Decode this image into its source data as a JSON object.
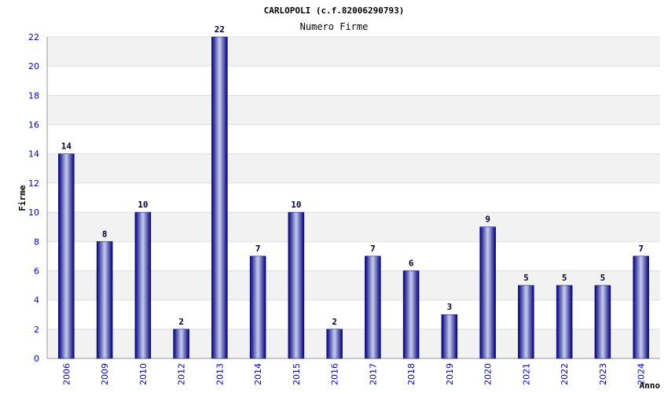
{
  "chart_data": {
    "type": "bar",
    "title": "CARLOPOLI (c.f.82006290793)",
    "subtitle": "Numero Firme",
    "xlabel": "Anno",
    "ylabel": "Firme",
    "categories": [
      "2006",
      "2009",
      "2010",
      "2012",
      "2013",
      "2014",
      "2015",
      "2016",
      "2017",
      "2018",
      "2019",
      "2020",
      "2021",
      "2022",
      "2023",
      "2024"
    ],
    "values": [
      14,
      8,
      10,
      2,
      22,
      7,
      10,
      2,
      7,
      6,
      3,
      9,
      5,
      5,
      5,
      7
    ],
    "ylim": [
      0,
      22
    ],
    "yticks": [
      0,
      2,
      4,
      6,
      8,
      10,
      12,
      14,
      16,
      18,
      20,
      22
    ],
    "grid": true,
    "colors": {
      "bar_edge": "#00007a",
      "bar_mid": "#c8cdf0",
      "band": "#f2f2f2",
      "tick_text": "#0000bb"
    }
  }
}
